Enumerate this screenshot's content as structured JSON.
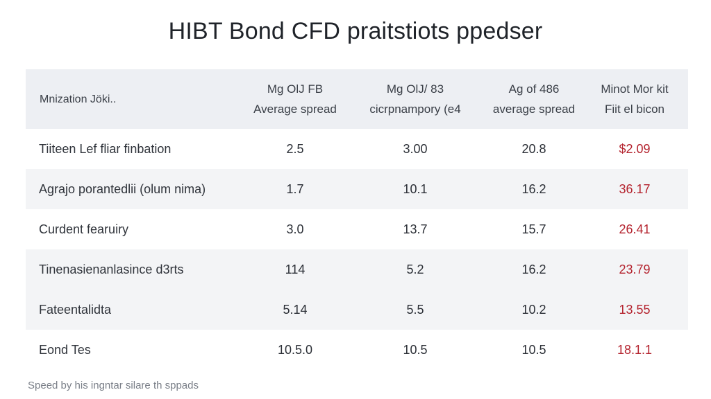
{
  "title": "HIBT Bond CFD praitstiots ppedser",
  "table": {
    "headers": [
      {
        "line1": "Mnization Jöki..",
        "line2": ""
      },
      {
        "line1": "Mg OlJ FB",
        "line2": "Average spread"
      },
      {
        "line1": "Mg OlJ/ 83",
        "line2": "cicrpnampory (e4"
      },
      {
        "line1": "Ag of 486",
        "line2": "average spread"
      },
      {
        "line1": "Minot Mor kit",
        "line2": "Fiit el bicon"
      }
    ],
    "rows": [
      [
        "Tiiteen Lef fliar finbation",
        "2.5",
        "3.00",
        "20.8",
        "$2.09"
      ],
      [
        "Agrajo porantedlii (olum nima)",
        "1.7",
        "10.1",
        "16.2",
        "36.17"
      ],
      [
        "Curdent fearuiry",
        "3.0",
        "13.7",
        "15.7",
        "26.41"
      ],
      [
        "Tinenasienanlasince d3rts",
        "114",
        "5.2",
        "16.2",
        "23.79"
      ],
      [
        "Fateentalidta",
        "5.14",
        "5.5",
        "10.2",
        "13.55"
      ],
      [
        "Eond Tes",
        "10.5.0",
        "10.5",
        "10.5",
        "18.1.1"
      ]
    ]
  },
  "footnote": "Speed by his ingntar silare th sppads",
  "colors": {
    "header_bg": "#edeff3",
    "alt_row_bg": "#f3f4f6",
    "accent_red": "#b4232e"
  }
}
